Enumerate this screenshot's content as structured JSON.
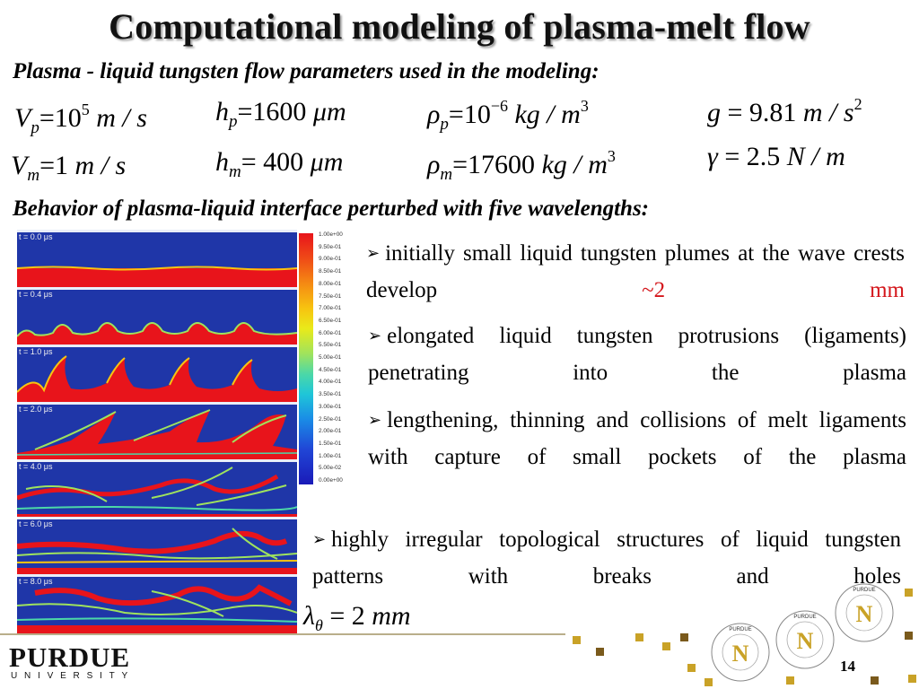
{
  "title": "Computational modeling of plasma-melt flow",
  "parameters_heading": "Plasma - liquid tungsten flow parameters used in the modeling:",
  "parameters": {
    "Vp": {
      "sym": "V",
      "sub": "p",
      "eq": "=10",
      "sup": "5",
      "unit": " m / s"
    },
    "hp": {
      "sym": "h",
      "sub": "p",
      "eq": "=1600 ",
      "unit": "μm"
    },
    "rhop": {
      "sym": "ρ",
      "sub": "p",
      "eq": "=10",
      "sup": "−6",
      "unit": " kg / m",
      "unit_sup": "3"
    },
    "g": {
      "sym": "g",
      "eq": " = 9.81",
      "unit": " m / s",
      "unit_sup": "2"
    },
    "Vm": {
      "sym": "V",
      "sub": "m",
      "eq": "=1",
      "unit": " m / s"
    },
    "hm": {
      "sym": "h",
      "sub": "m",
      "eq": "= 400 ",
      "unit": "μm"
    },
    "rhom": {
      "sym": "ρ",
      "sub": "m",
      "eq": "=17600",
      "unit": " kg / m",
      "unit_sup": "3"
    },
    "gamma": {
      "sym": "γ",
      "eq": " = 2.5",
      "unit": " N / m"
    }
  },
  "behavior_heading": "Behavior of plasma-liquid interface perturbed with five wavelengths:",
  "frames": [
    "t = 0.0 μs",
    "t = 0.4 μs",
    "t = 1.0 μs",
    "t = 2.0 μs",
    "t = 4.0 μs",
    "t = 6.0 μs",
    "t = 8.0 μs"
  ],
  "colorbar_ticks": [
    "1.00e+00",
    "9.50e-01",
    "9.00e-01",
    "8.50e-01",
    "8.00e-01",
    "7.50e-01",
    "7.00e-01",
    "6.50e-01",
    "6.00e-01",
    "5.50e-01",
    "5.00e-01",
    "4.50e-01",
    "4.00e-01",
    "3.50e-01",
    "3.00e-01",
    "2.50e-01",
    "2.00e-01",
    "1.50e-01",
    "1.00e-01",
    "5.00e-02",
    "0.00e+00"
  ],
  "bullets": {
    "b1_text": "initially small liquid tungsten plumes at the wave crests develop ",
    "b1_highlight": "~2 mm",
    "b2_text": "elongated liquid tungsten protrusions (ligaments) penetrating into the plasma",
    "b3_text": "lengthening, thinning and collisions of melt ligaments with capture of small pockets of the plasma",
    "b4_text": "highly irregular topological structures of liquid tungsten patterns with breaks and holes"
  },
  "wavelength": {
    "sym": "λ",
    "sub": "θ",
    "value": "= 2",
    "unit": " mm"
  },
  "footer": {
    "university": "PURDUE",
    "university_sub": "UNIVERSITY",
    "page_number": "14",
    "badge_top": "PURDUE",
    "badge_ring": "NUCLEAR ENGINEERING",
    "badge_letter": "N"
  },
  "colors": {
    "accent_red": "#d4161b",
    "melt": "#e8141b",
    "plasma": "#1f36a8",
    "footer_gold": "#c9a227",
    "footer_brown": "#7a5a1c"
  }
}
